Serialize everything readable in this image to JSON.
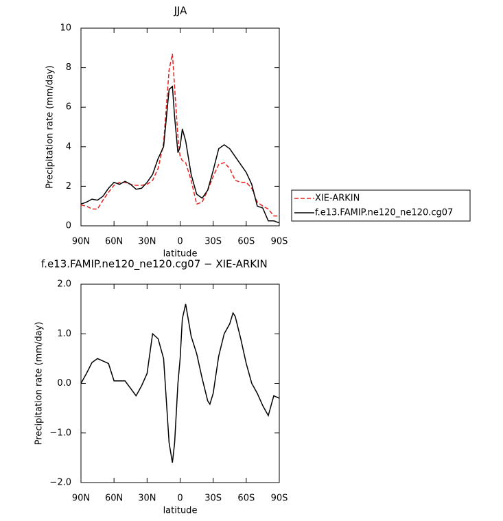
{
  "chart_data": [
    {
      "type": "line",
      "title": "JJA",
      "xlabel": "latitude",
      "ylabel": "Precipitation rate (mm/day)",
      "x": [
        90,
        85,
        80,
        75,
        70,
        65,
        60,
        55,
        50,
        45,
        40,
        35,
        30,
        25,
        20,
        15,
        10,
        7,
        5,
        2,
        0,
        -2,
        -5,
        -10,
        -15,
        -20,
        -25,
        -30,
        -35,
        -40,
        -45,
        -50,
        -55,
        -60,
        -65,
        -70,
        -75,
        -80,
        -85,
        -90
      ],
      "series": [
        {
          "name": "XIE-ARKIN",
          "color": "#e8201e",
          "linestyle": "dashed",
          "values": [
            1.05,
            1.0,
            0.85,
            0.85,
            1.3,
            1.7,
            2.05,
            2.2,
            2.2,
            2.1,
            2.05,
            2.05,
            2.1,
            2.3,
            2.9,
            4.2,
            7.9,
            8.7,
            7.0,
            4.5,
            3.5,
            3.3,
            3.2,
            2.3,
            1.1,
            1.2,
            1.8,
            2.5,
            3.1,
            3.2,
            2.9,
            2.3,
            2.2,
            2.2,
            1.9,
            1.2,
            1.0,
            0.85,
            0.5,
            0.5
          ]
        },
        {
          "name": "f.e13.FAMIP.ne120_ne120.cg07",
          "color": "#000000",
          "linestyle": "solid",
          "values": [
            1.1,
            1.2,
            1.35,
            1.3,
            1.5,
            1.9,
            2.2,
            2.1,
            2.25,
            2.1,
            1.85,
            1.9,
            2.2,
            2.6,
            3.4,
            4.0,
            6.9,
            7.05,
            5.5,
            3.7,
            4.0,
            4.9,
            4.3,
            2.6,
            1.6,
            1.4,
            1.8,
            2.8,
            3.9,
            4.1,
            3.9,
            3.5,
            3.1,
            2.7,
            2.1,
            1.0,
            0.9,
            0.25,
            0.25,
            0.15
          ]
        }
      ],
      "xlim": [
        90,
        -90
      ],
      "xticks": [
        {
          "value": 90,
          "label": "90N"
        },
        {
          "value": 60,
          "label": "60N"
        },
        {
          "value": 30,
          "label": "30N"
        },
        0,
        {
          "value": -30,
          "label": "30S"
        },
        {
          "value": -60,
          "label": "60S"
        },
        {
          "value": -90,
          "label": "90S"
        }
      ],
      "ylim": [
        0,
        10
      ],
      "yticks": [
        0,
        2,
        4,
        6,
        8,
        10
      ],
      "legend": "right"
    },
    {
      "type": "line",
      "title": "f.e13.FAMIP.ne120_ne120.cg07 − XIE-ARKIN",
      "xlabel": "latitude",
      "ylabel": "Precipitation rate (mm/day)",
      "x": [
        90,
        85,
        80,
        75,
        70,
        65,
        60,
        55,
        50,
        45,
        40,
        35,
        30,
        25,
        20,
        15,
        10,
        7,
        5,
        2,
        0,
        -2,
        -5,
        -10,
        -15,
        -20,
        -25,
        -27,
        -30,
        -35,
        -40,
        -45,
        -48,
        -50,
        -55,
        -60,
        -65,
        -70,
        -75,
        -80,
        -85,
        -90
      ],
      "values": [
        0.0,
        0.2,
        0.42,
        0.5,
        0.45,
        0.4,
        0.05,
        0.05,
        0.05,
        -0.1,
        -0.25,
        -0.05,
        0.2,
        1.0,
        0.9,
        0.5,
        -1.2,
        -1.6,
        -1.2,
        0.0,
        0.5,
        1.3,
        1.6,
        0.95,
        0.6,
        0.1,
        -0.35,
        -0.42,
        -0.2,
        0.55,
        1.0,
        1.2,
        1.42,
        1.35,
        0.9,
        0.4,
        0.0,
        -0.2,
        -0.45,
        -0.65,
        -0.25,
        -0.3
      ],
      "color": "#000000",
      "xlim": [
        90,
        -90
      ],
      "xticks": [
        {
          "value": 90,
          "label": "90N"
        },
        {
          "value": 60,
          "label": "60N"
        },
        {
          "value": 30,
          "label": "30N"
        },
        0,
        {
          "value": -30,
          "label": "30S"
        },
        {
          "value": -60,
          "label": "60S"
        },
        {
          "value": -90,
          "label": "90S"
        }
      ],
      "ylim": [
        -2,
        2
      ],
      "yticks": [
        {
          "value": -2,
          "label": "−2.0"
        },
        {
          "value": -1,
          "label": "−1.0"
        },
        {
          "value": 0,
          "label": "0.0"
        },
        {
          "value": 1,
          "label": "1.0"
        },
        {
          "value": 2,
          "label": "2.0"
        }
      ]
    }
  ]
}
